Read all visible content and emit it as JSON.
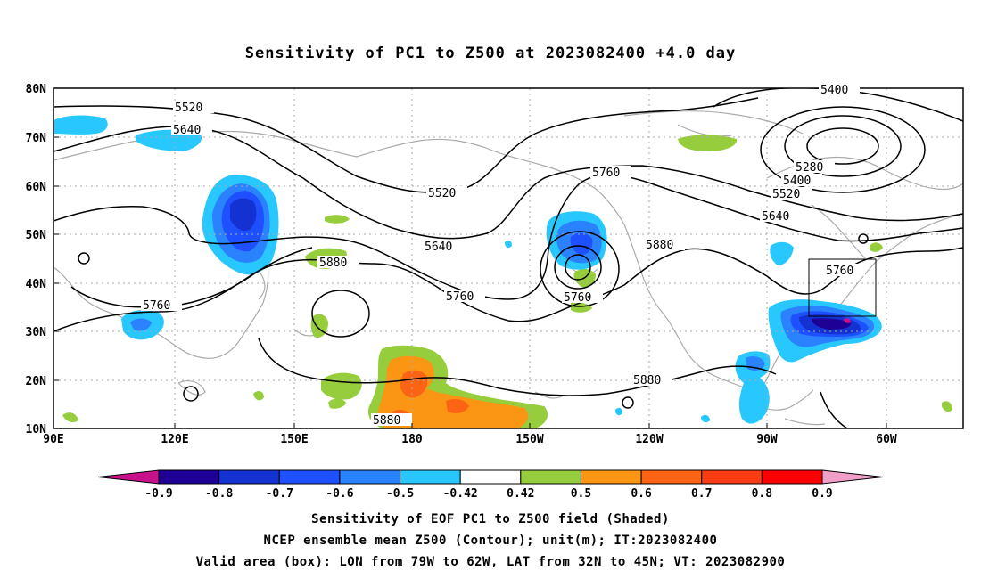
{
  "title": "Sensitivity of PC1 to Z500 at 2023082400 +4.0 day",
  "lat_labels": [
    "80N",
    "70N",
    "60N",
    "50N",
    "40N",
    "30N",
    "20N",
    "10N"
  ],
  "lon_labels": [
    "90E",
    "120E",
    "150E",
    "180",
    "150W",
    "120W",
    "90W",
    "60W"
  ],
  "contour_labels": {
    "c5400_top": "5400",
    "c5520_nw": "5520",
    "c5640_nw": "5640",
    "c5520_mid": "5520",
    "c5640_mid": "5640",
    "c5760_mid": "5760",
    "c5760_pac": "5760",
    "c5760_w": "5760",
    "c5880_pac": "5880",
    "c5880_s": "5880",
    "c5880_e": "5880",
    "c5880_se": "5880",
    "c5760_ne": "5760",
    "c5280": "5280",
    "c5400": "5400",
    "c5520_e": "5520",
    "c5640_e": "5640",
    "c5760_box": "5760"
  },
  "colorbar": {
    "colors": [
      "#c8128c",
      "#1e0096",
      "#1432d2",
      "#1e50ff",
      "#2a82ff",
      "#28c8ff",
      "#ffffff",
      "#96cd3c",
      "#fa9614",
      "#fa6414",
      "#fa3c14",
      "#ff0000",
      "#f0a0c8"
    ],
    "labels": [
      "-0.9",
      "-0.8",
      "-0.7",
      "-0.6",
      "-0.5",
      "-0.42",
      "0.42",
      "0.5",
      "0.6",
      "0.7",
      "0.8",
      "0.9"
    ]
  },
  "captions": [
    "Sensitivity of EOF PC1 to Z500 field (Shaded)",
    "NCEP ensemble mean Z500 (Contour); unit(m); IT:2023082400",
    "Valid area (box): LON from 79W to 62W, LAT from 32N to 45N; VT: 2023082900"
  ]
}
